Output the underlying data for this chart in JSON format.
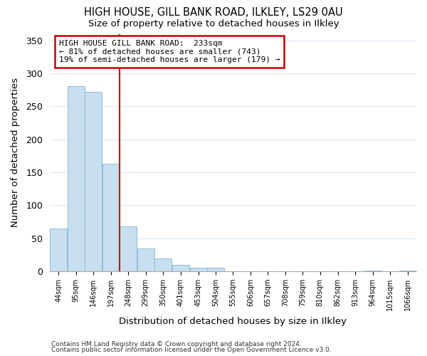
{
  "title": "HIGH HOUSE, GILL BANK ROAD, ILKLEY, LS29 0AU",
  "subtitle": "Size of property relative to detached houses in Ilkley",
  "xlabel": "Distribution of detached houses by size in Ilkley",
  "ylabel": "Number of detached properties",
  "bar_left_edges": [
    44,
    95,
    146,
    197,
    248,
    299,
    350,
    401,
    453,
    504,
    555,
    606,
    657,
    708,
    759,
    810,
    862,
    913,
    964,
    1015,
    1066
  ],
  "bar_heights": [
    65,
    281,
    272,
    163,
    68,
    35,
    20,
    10,
    5,
    5,
    0,
    0,
    0,
    0,
    0,
    0,
    0,
    0,
    1,
    0,
    1
  ],
  "bar_color": "#c8dff0",
  "bar_edgecolor": "#90bcd8",
  "vline_x": 248,
  "vline_color": "#cc0000",
  "ylim": [
    0,
    360
  ],
  "yticks": [
    0,
    50,
    100,
    150,
    200,
    250,
    300,
    350
  ],
  "annotation_title": "HIGH HOUSE GILL BANK ROAD:  233sqm",
  "annotation_line1": "← 81% of detached houses are smaller (743)",
  "annotation_line2": "19% of semi-detached houses are larger (179) →",
  "annotation_box_facecolor": "#ffffff",
  "annotation_box_edgecolor": "#cc0000",
  "footer_line1": "Contains HM Land Registry data © Crown copyright and database right 2024.",
  "footer_line2": "Contains public sector information licensed under the Open Government Licence v3.0.",
  "background_color": "#ffffff",
  "grid_color": "#d8e8f4"
}
